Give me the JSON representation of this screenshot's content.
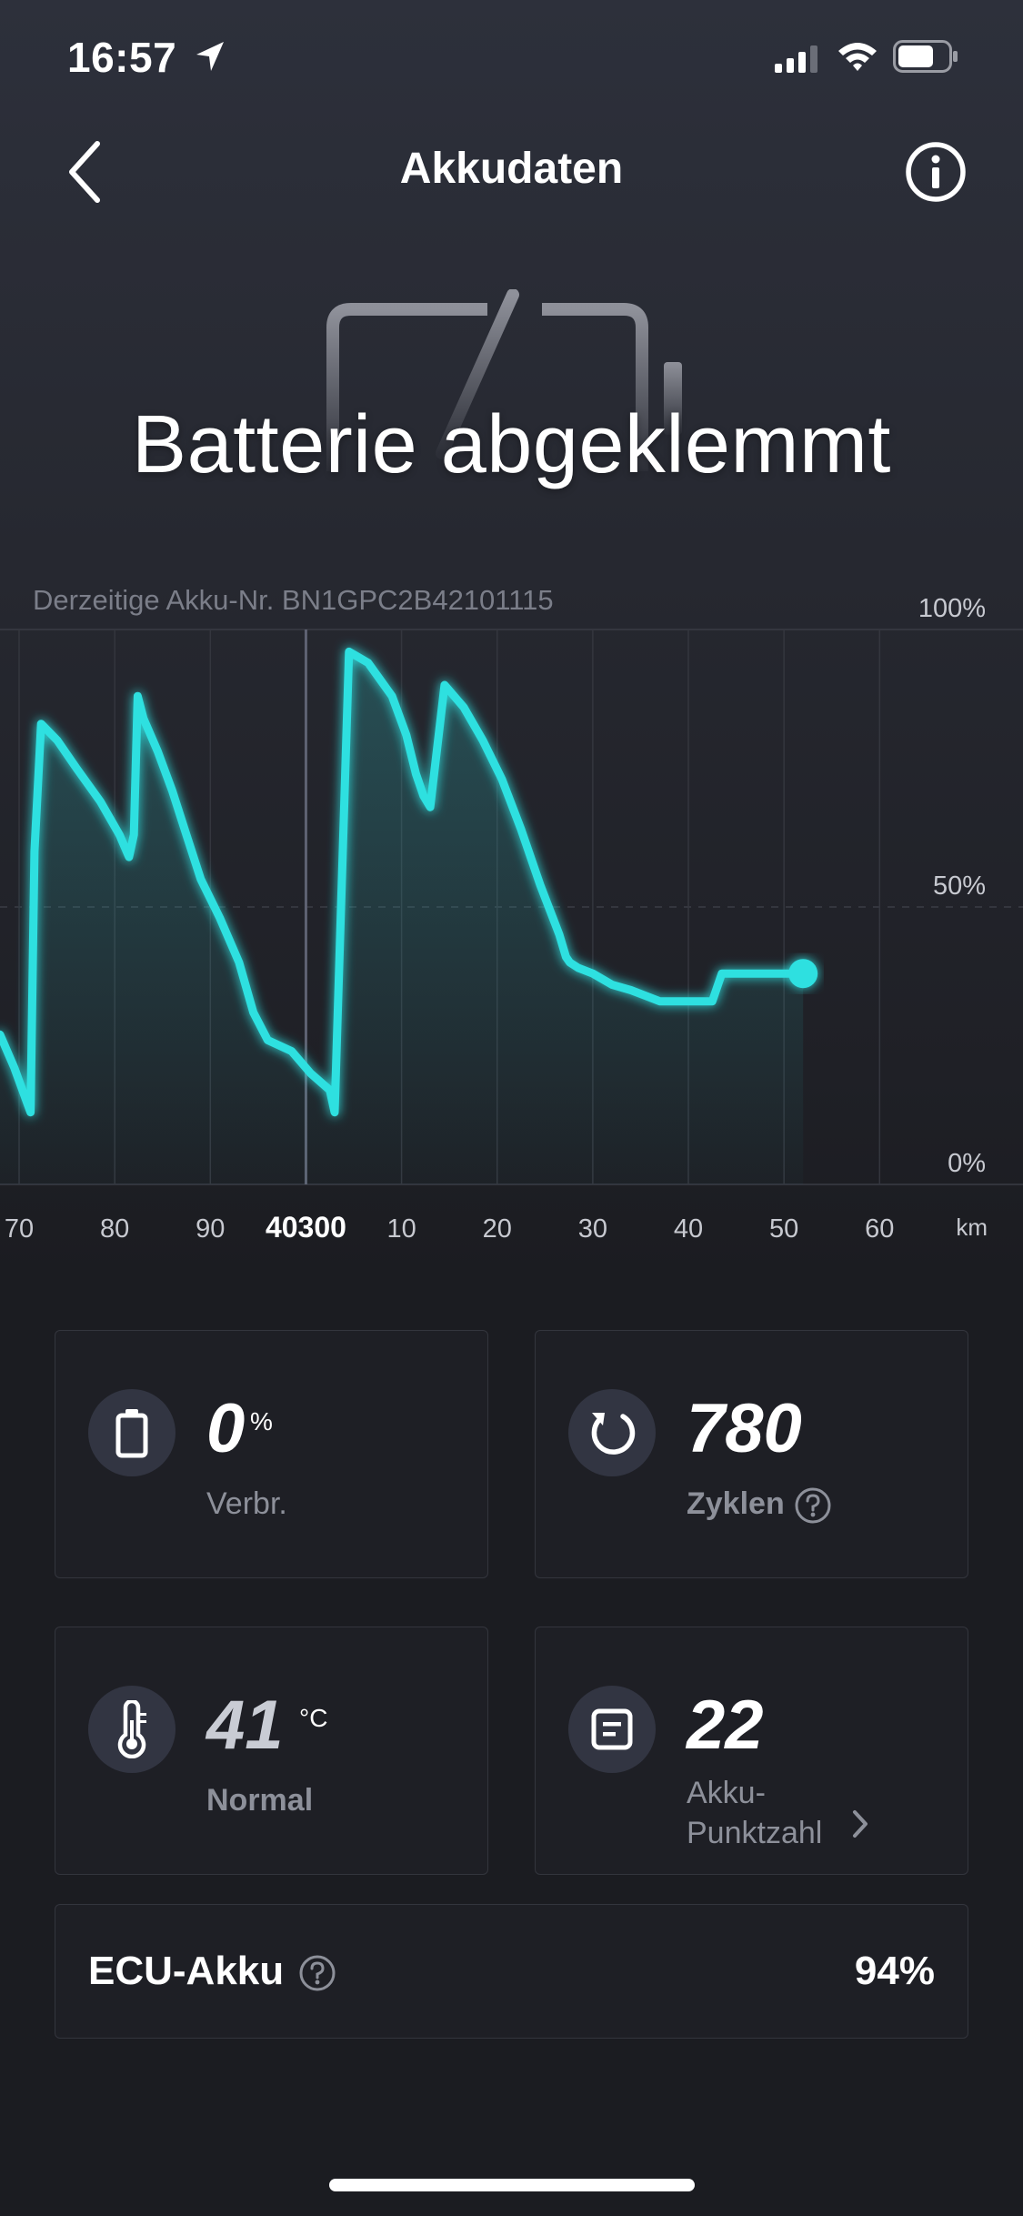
{
  "status_bar": {
    "time": "16:57",
    "icons": [
      "location-arrow-icon",
      "cellular-signal-icon",
      "wifi-icon",
      "battery-icon"
    ]
  },
  "nav": {
    "title": "Akkudaten",
    "back_icon": "chevron-left-icon",
    "info_icon": "info-circle-icon"
  },
  "hero": {
    "graphic": "battery-disconnected-icon",
    "status_text": "Batterie abgeklemmt"
  },
  "battery_id_label": "Derzeitige Akku-Nr. BN1GPC2B42101115",
  "chart_data": {
    "type": "area",
    "x_unit": "km",
    "x_ticks": [
      "70",
      "80",
      "90",
      "40300",
      "10",
      "20",
      "30",
      "40",
      "50",
      "60"
    ],
    "x_tick_values": [
      40270,
      40280,
      40290,
      40300,
      40310,
      40320,
      40330,
      40340,
      40350,
      40360
    ],
    "highlight_tick": "40300",
    "y_labels": [
      "100%",
      "50%",
      "0%"
    ],
    "ylim": [
      0,
      100
    ],
    "xlim": [
      40268,
      40375
    ],
    "grid": true,
    "accent_color": "#2ee0e0",
    "series": [
      {
        "x": [
          40268.0,
          40269.5,
          40271.2,
          40271.6,
          40272.3,
          40274.0,
          40276.0,
          40278.5,
          40280.5,
          40281.5,
          40282.0,
          40282.4,
          40283.0,
          40284.5,
          40286.0,
          40287.5,
          40289.0,
          40291.0,
          40293.0,
          40294.5,
          40296.0,
          40298.5,
          40300.5,
          40302.5,
          40303.0,
          40304.5,
          40306.5,
          40309.0,
          40310.5,
          40311.5,
          40312.3,
          40313.0,
          40314.5,
          40316.5,
          40318.5,
          40320.5,
          40322.5,
          40324.5,
          40326.5,
          40327.2,
          40327.6,
          40328.5,
          40330.0,
          40332.0,
          40334.0,
          40335.5,
          40337.0,
          40338.5,
          40340.0,
          40341.5,
          40342.5,
          40343.5
        ],
        "y": [
          27,
          21,
          13,
          60,
          83,
          80,
          75,
          69,
          63,
          59,
          63,
          88,
          84,
          78,
          71,
          63,
          55,
          48,
          40,
          31,
          26,
          24,
          20,
          17,
          13,
          96,
          94,
          88,
          81,
          74,
          70,
          68,
          90,
          86,
          80,
          73,
          64,
          54,
          45,
          41,
          40,
          39,
          38,
          36,
          35,
          34,
          33,
          33,
          33,
          33,
          33,
          38
        ]
      }
    ],
    "current_point": {
      "x": 40352,
      "y": 38
    }
  },
  "cards": {
    "consumption": {
      "icon": "battery-outline-icon",
      "value": "0",
      "unit": "%",
      "label": "Verbr."
    },
    "cycles": {
      "icon": "refresh-icon",
      "value": "780",
      "label": "Zyklen",
      "help_icon": "question-circle-icon"
    },
    "temperature": {
      "icon": "thermometer-icon",
      "value": "41",
      "unit": "°C",
      "label": "Normal"
    },
    "score": {
      "icon": "document-icon",
      "value": "22",
      "label_line1": "Akku-",
      "label_line2": "Punktzahl",
      "arrow_icon": "chevron-right-icon"
    }
  },
  "ecu": {
    "label": "ECU-Akku",
    "help_icon": "question-circle-icon",
    "value": "94%"
  },
  "colors": {
    "background": "#1b1c21",
    "card": "#1e1f25",
    "accent": "#2ee0e0",
    "muted_text": "#8d909a"
  }
}
